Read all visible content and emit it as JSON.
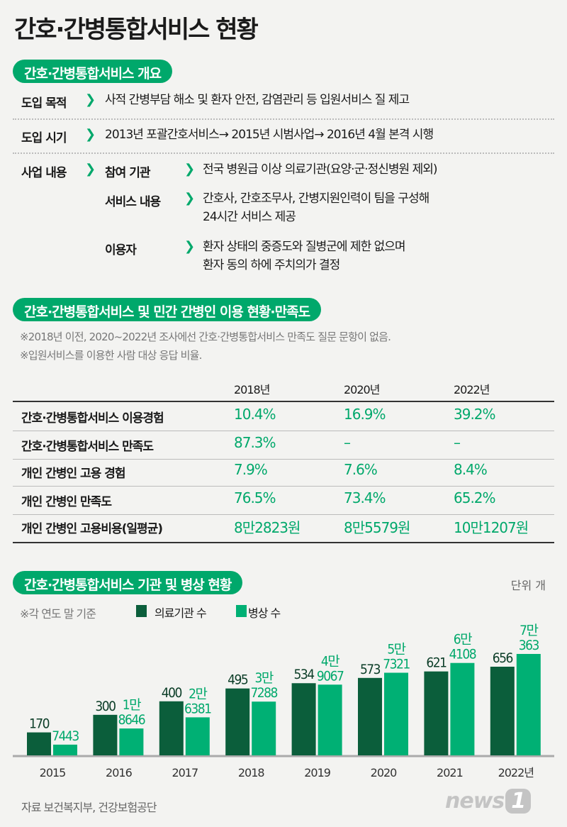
{
  "title": "간호·간병통합서비스 현황",
  "overview": {
    "heading": "간호·간병통합서비스 개요",
    "purpose_label": "도입 목적",
    "purpose": "사적 간병부담 해소 및 환자 안전, 감염관리 등 입원서비스 질 제고",
    "timing_label": "도입 시기",
    "timing": "2013년 포괄간호서비스→ 2015년 시범사업→ 2016년 4월 본격 시행",
    "business_label": "사업 내용",
    "items": [
      {
        "label": "참여 기관",
        "lines": [
          "전국 병원급 이상 의료기관(요양·군·정신병원 제외)"
        ]
      },
      {
        "label": "서비스 내용",
        "lines": [
          "간호사, 간호조무사, 간병지원인력이 팀을 구성해",
          "24시간 서비스 제공"
        ]
      },
      {
        "label": "이용자",
        "lines": [
          "환자 상태의 중증도와 질병군에 제한 없으며",
          "환자 동의 하에 주치의가 결정"
        ]
      }
    ]
  },
  "usage": {
    "heading": "간호·간병통합서비스 및 민간 간병인 이용 현황·만족도",
    "notes": [
      "※2018년 이전, 2020~2022년 조사에선 간호·간병통합서비스 만족도 질문 문항이 없음.",
      "※입원서비스를 이용한 사람 대상 응답 비율."
    ],
    "columns": [
      "2018년",
      "2020년",
      "2022년"
    ],
    "rows": [
      {
        "label": "간호·간병통합서비스 이용경험",
        "values": [
          "10.4%",
          "16.9%",
          "39.2%"
        ]
      },
      {
        "label": "간호·간병통합서비스 만족도",
        "values": [
          "87.3%",
          "–",
          "–"
        ]
      },
      {
        "label": "개인 간병인 고용 경험",
        "values": [
          "7.9%",
          "7.6%",
          "8.4%"
        ]
      },
      {
        "label": "개인 간병인 만족도",
        "values": [
          "76.5%",
          "73.4%",
          "65.2%"
        ]
      },
      {
        "label": "개인 간병인 고용비용(일평균)",
        "values": [
          "8만2823원",
          "8만5579원",
          "10만1207원"
        ]
      }
    ]
  },
  "chart_data": {
    "type": "bar",
    "title": "간호·간병통합서비스 기관 및 병상 현황",
    "unit": "단위 개",
    "note": "※각 연도 말 기준",
    "categories": [
      "2015",
      "2016",
      "2017",
      "2018",
      "2019",
      "2020",
      "2021",
      "2022년"
    ],
    "series": [
      {
        "name": "의료기관 수",
        "color": "#0b5e3b",
        "values": [
          170,
          300,
          400,
          495,
          534,
          573,
          621,
          656
        ],
        "labels": [
          "170",
          "300",
          "400",
          "495",
          "534",
          "573",
          "621",
          "656"
        ]
      },
      {
        "name": "병상 수",
        "color": "#00b074",
        "values": [
          7443,
          18646,
          26381,
          37288,
          49067,
          57321,
          64108,
          70363
        ],
        "labels": [
          "7443",
          "1만\n8646",
          "2만\n6381",
          "3만\n7288",
          "4만\n9067",
          "5만\n7321",
          "6만\n4108",
          "7만\n363"
        ]
      }
    ],
    "legend": "top-left"
  },
  "source": "자료 보건복지부, 건강보험공단",
  "logo": "news1"
}
